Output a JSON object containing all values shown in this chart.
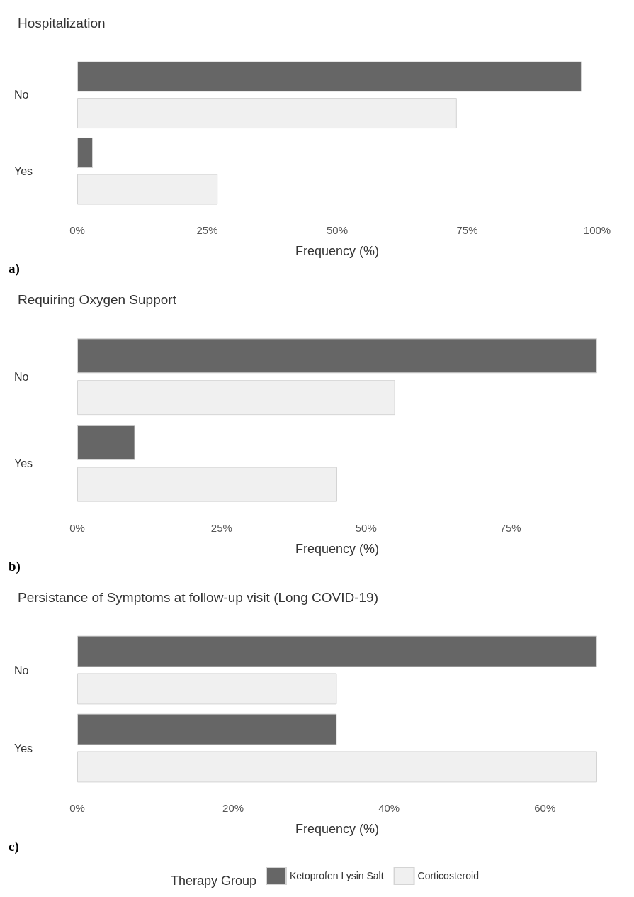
{
  "chart_data": [
    {
      "type": "bar",
      "orientation": "horizontal",
      "title": "Hospitalization",
      "xlabel": "Frequency (%)",
      "categories": [
        "No",
        "Yes"
      ],
      "series": [
        {
          "color": "#666666",
          "values": [
            97,
            3
          ]
        },
        {
          "color": "#f0f0f0",
          "values": [
            73,
            27
          ]
        }
      ],
      "xlim": [
        0,
        100
      ],
      "xticks": [
        {
          "value": 0,
          "label": "0%"
        },
        {
          "value": 25,
          "label": "25%"
        },
        {
          "value": 50,
          "label": "50%"
        },
        {
          "value": 75,
          "label": "75%"
        },
        {
          "value": 100,
          "label": "100%"
        }
      ],
      "grid": false,
      "annotations": [
        "a)"
      ]
    },
    {
      "type": "bar",
      "orientation": "horizontal",
      "title": "Requiring Oxygen Support",
      "xlabel": "Frequency (%)",
      "categories": [
        "No",
        "Yes"
      ],
      "series": [
        {
          "color": "#666666",
          "values": [
            90,
            10
          ]
        },
        {
          "color": "#f0f0f0",
          "values": [
            55,
            45
          ]
        }
      ],
      "xlim": [
        0,
        90
      ],
      "xticks": [
        {
          "value": 0,
          "label": "0%"
        },
        {
          "value": 25,
          "label": "25%"
        },
        {
          "value": 50,
          "label": "50%"
        },
        {
          "value": 75,
          "label": "75%"
        }
      ],
      "grid": false,
      "annotations": [
        "b)"
      ]
    },
    {
      "type": "bar",
      "orientation": "horizontal",
      "title": "Persistance of Symptoms at follow-up visit (Long COVID-19)",
      "xlabel": "Frequency (%)",
      "categories": [
        "No",
        "Yes"
      ],
      "series": [
        {
          "name": "Ketoprofen Lysin Salt",
          "color": "#666666",
          "values": [
            66.7,
            33.3
          ]
        },
        {
          "name": "Corticosteroid",
          "color": "#f0f0f0",
          "values": [
            33.3,
            66.7
          ]
        }
      ],
      "xlim": [
        0,
        66.7
      ],
      "xticks": [
        {
          "value": 0,
          "label": "0%"
        },
        {
          "value": 20,
          "label": "20%"
        },
        {
          "value": 40,
          "label": "40%"
        },
        {
          "value": 60,
          "label": "60%"
        }
      ],
      "grid": false,
      "legend": "bottom",
      "legend_title": "Therapy Group",
      "annotations": [
        "c)"
      ]
    }
  ]
}
